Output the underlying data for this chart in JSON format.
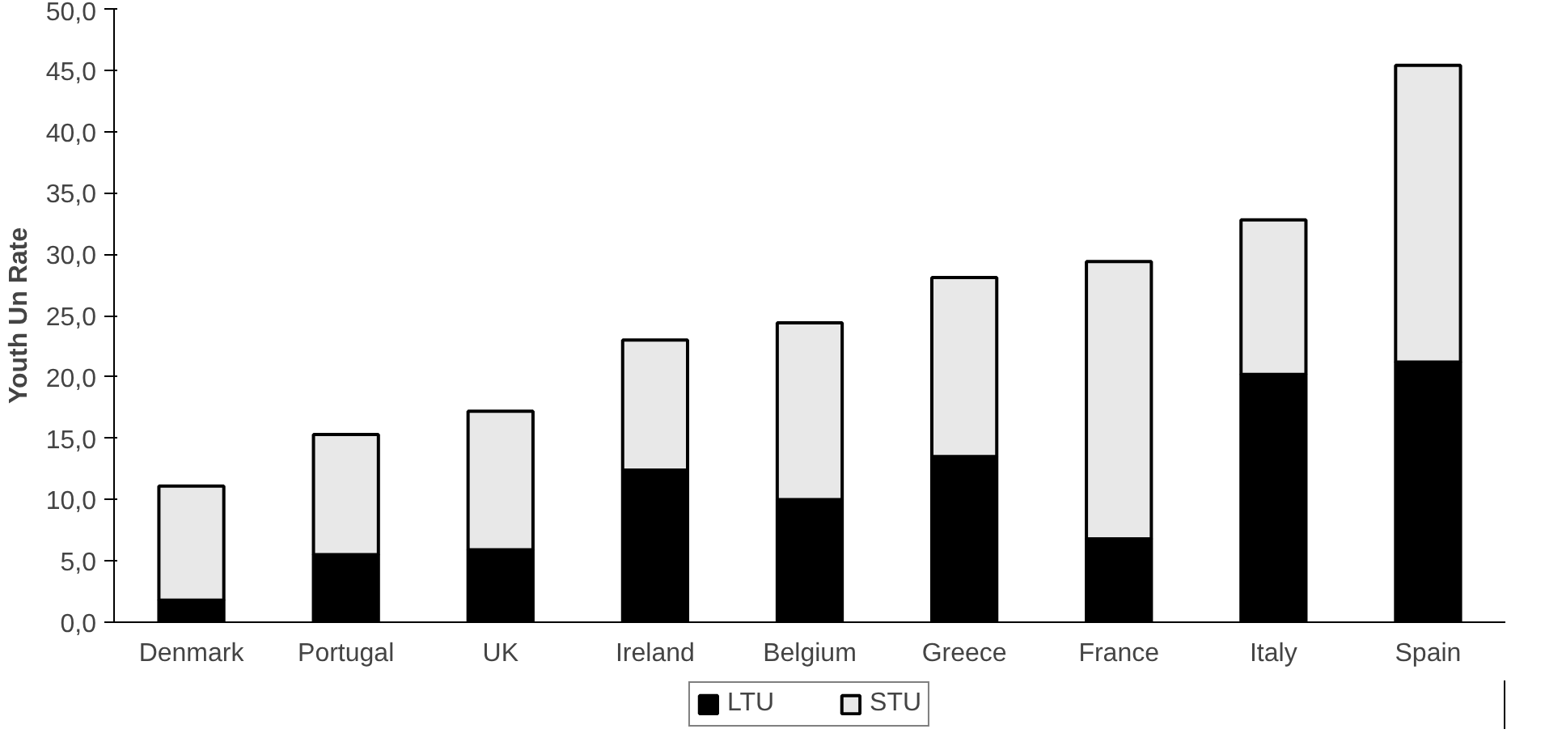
{
  "chart_data": {
    "type": "bar",
    "stacked": true,
    "ylabel": "Youth Un Rate",
    "categories": [
      "Denmark",
      "Portugal",
      "UK",
      "Ireland",
      "Belgium",
      "Greece",
      "France",
      "Italy",
      "Spain"
    ],
    "series": [
      {
        "name": "LTU",
        "color": "#000000",
        "values": [
          1.8,
          5.5,
          5.9,
          12.4,
          10.0,
          13.5,
          6.8,
          20.2,
          21.2
        ]
      },
      {
        "name": "STU",
        "color": "#e8e8e8",
        "values": [
          9.3,
          9.8,
          11.3,
          10.6,
          14.4,
          14.6,
          22.6,
          12.6,
          24.2
        ]
      }
    ],
    "ylim": [
      0,
      50
    ],
    "yticks": [
      {
        "value": 0,
        "label": "0,0"
      },
      {
        "value": 5,
        "label": "5,0"
      },
      {
        "value": 10,
        "label": "10,0"
      },
      {
        "value": 15,
        "label": "15,0"
      },
      {
        "value": 20,
        "label": "20,0"
      },
      {
        "value": 25,
        "label": "25,0"
      },
      {
        "value": 30,
        "label": "30,0"
      },
      {
        "value": 35,
        "label": "35,0"
      },
      {
        "value": 40,
        "label": "40,0"
      },
      {
        "value": 45,
        "label": "45,0"
      },
      {
        "value": 50,
        "label": "50,0"
      }
    ],
    "grid": false,
    "legend": "bottom"
  }
}
